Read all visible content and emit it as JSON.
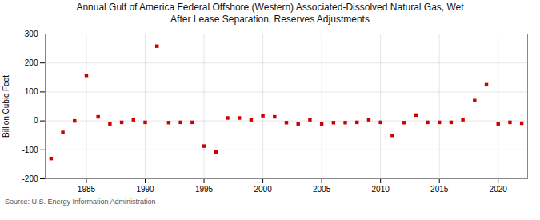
{
  "chart_data": {
    "type": "scatter",
    "title": "Annual Gulf of America Federal Offshore (Western) Associated-Dissolved Natural Gas, Wet\nAfter Lease Separation, Reserves Adjustments",
    "ylabel": "Billion Cubic Feet",
    "source": "Source: U.S. Energy Information Administration",
    "x": [
      1982,
      1983,
      1984,
      1985,
      1986,
      1987,
      1988,
      1989,
      1990,
      1991,
      1992,
      1993,
      1994,
      1995,
      1996,
      1997,
      1998,
      1999,
      2000,
      2001,
      2002,
      2003,
      2004,
      2005,
      2006,
      2007,
      2008,
      2009,
      2010,
      2011,
      2012,
      2013,
      2014,
      2015,
      2016,
      2017,
      2018,
      2019,
      2020,
      2021,
      2022
    ],
    "values": [
      -130,
      -40,
      0,
      157,
      14,
      -10,
      -5,
      4,
      -5,
      258,
      -6,
      -5,
      -5,
      -87,
      -107,
      10,
      10,
      4,
      18,
      14,
      -6,
      -10,
      4,
      -10,
      -6,
      -6,
      -5,
      4,
      -5,
      -50,
      -6,
      20,
      -5,
      -5,
      -5,
      4,
      70,
      125,
      -10,
      -5,
      -8
    ],
    "color": "#cc0000",
    "marker": "square",
    "grid": true,
    "xlim": [
      1981.5,
      2022.5
    ],
    "xticks": [
      1985,
      1990,
      1995,
      2000,
      2005,
      2010,
      2015,
      2020
    ],
    "ylim": [
      -200,
      300
    ],
    "yticks": [
      -200,
      -100,
      0,
      100,
      200,
      300
    ]
  }
}
